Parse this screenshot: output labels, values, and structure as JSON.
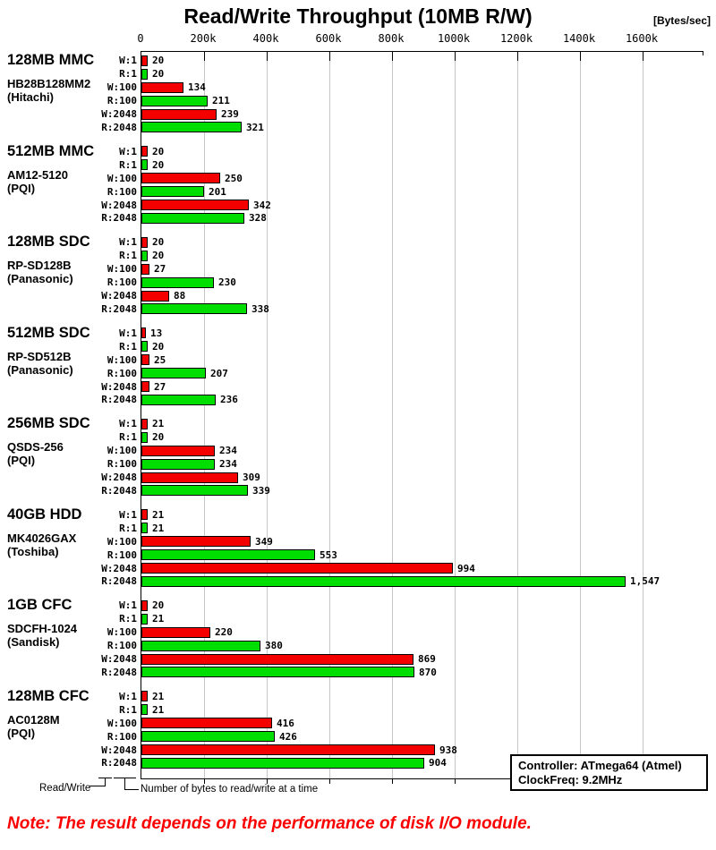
{
  "title": "Read/Write Throughput (10MB R/W)",
  "units_label": "[Bytes/sec]",
  "axis": {
    "ticks": [
      "0",
      "200k",
      "400k",
      "600k",
      "800k",
      "1000k",
      "1200k",
      "1400k",
      "1600k"
    ]
  },
  "chart_data": {
    "type": "bar",
    "orientation": "horizontal",
    "title": "Read/Write Throughput (10MB R/W)",
    "xlabel": "[Bytes/sec]",
    "xlim_k": [
      0,
      1794
    ],
    "grid": true,
    "tick_values_k": [
      0,
      200,
      400,
      600,
      800,
      1000,
      1200,
      1400,
      1600
    ],
    "row_labels": [
      "W:1",
      "R:1",
      "W:100",
      "R:100",
      "W:2048",
      "R:2048"
    ],
    "row_kinds": [
      "write",
      "read",
      "write",
      "read",
      "write",
      "read"
    ],
    "colors": {
      "write": "#f40000",
      "read": "#00dd00"
    },
    "values_unit": "kBytes/sec",
    "groups": [
      {
        "name": "128MB MMC",
        "model": "HB28B128MM2",
        "maker": "(Hitachi)",
        "values": [
          20,
          20,
          134,
          211,
          239,
          321
        ]
      },
      {
        "name": "512MB MMC",
        "model": "AM12-5120",
        "maker": "(PQI)",
        "values": [
          20,
          20,
          250,
          201,
          342,
          328
        ]
      },
      {
        "name": "128MB SDC",
        "model": "RP-SD128B",
        "maker": "(Panasonic)",
        "values": [
          20,
          20,
          27,
          230,
          88,
          338
        ]
      },
      {
        "name": "512MB SDC",
        "model": "RP-SD512B",
        "maker": "(Panasonic)",
        "values": [
          13,
          20,
          25,
          207,
          27,
          236
        ]
      },
      {
        "name": "256MB SDC",
        "model": "QSDS-256",
        "maker": "(PQI)",
        "values": [
          21,
          20,
          234,
          234,
          309,
          339
        ]
      },
      {
        "name": "40GB HDD",
        "model": "MK4026GAX",
        "maker": "(Toshiba)",
        "values": [
          21,
          21,
          349,
          553,
          994,
          1547
        ]
      },
      {
        "name": "1GB CFC",
        "model": "SDCFH-1024",
        "maker": "(Sandisk)",
        "values": [
          20,
          21,
          220,
          380,
          869,
          870
        ]
      },
      {
        "name": "128MB CFC",
        "model": "AC0128M",
        "maker": "(PQI)",
        "values": [
          21,
          21,
          416,
          426,
          938,
          904
        ]
      }
    ]
  },
  "legend": {
    "read_write_label": "Read/Write",
    "bytes_label": "Number of bytes to read/write at a time"
  },
  "info_box": {
    "line1": "Controller: ATmega64 (Atmel)",
    "line2": "ClockFreq: 9.2MHz"
  },
  "note": "Note: The result depends on the performance of disk I/O module."
}
